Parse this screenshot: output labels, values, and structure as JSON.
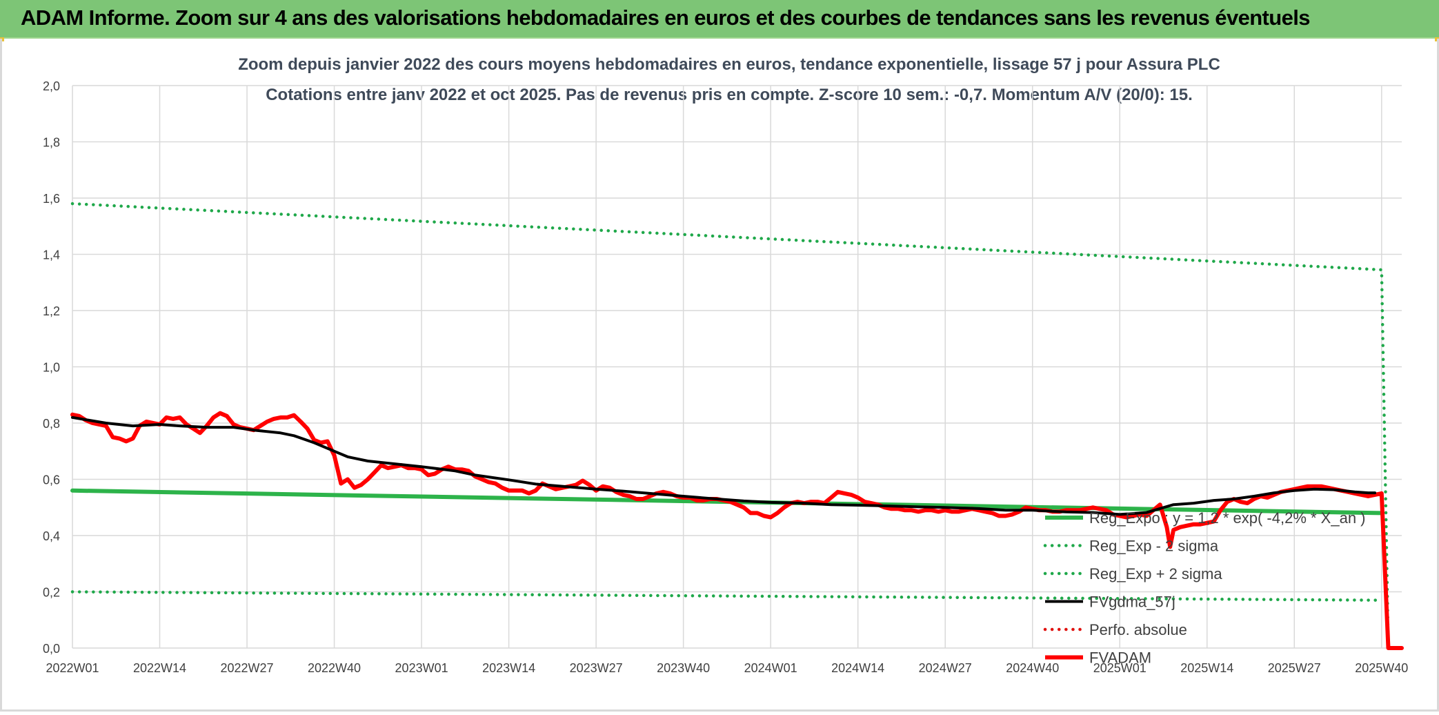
{
  "header": {
    "banner_title": "ADAM Informe. Zoom sur 4 ans des valorisations hebdomadaires en euros et des courbes de tendances sans les revenus éventuels"
  },
  "colors": {
    "banner_bg": "#7dc576",
    "reg_expo": "#2db34a",
    "sigma": "#1fa84a",
    "fvgdma": "#000000",
    "fvadam": "#ff0000",
    "perfo": "#e0120f",
    "grid": "#d9d9d9"
  },
  "chart_data": {
    "type": "line",
    "title": "Zoom depuis janvier 2022 des cours moyens hebdomadaires en euros, tendance exponentielle, lissage 57 j pour Assura PLC",
    "subtitle": "Cotations entre janv 2022 et oct 2025. Pas de revenus pris en compte. Z-score 10 sem.: -0,7. Momentum A/V (20/0): 15.",
    "xlabel": "",
    "ylabel": "",
    "x_ticks": [
      "2022W01",
      "2022W14",
      "2022W27",
      "2022W40",
      "2023W01",
      "2023W14",
      "2023W27",
      "2023W40",
      "2024W01",
      "2024W14",
      "2024W27",
      "2024W40",
      "2025W01",
      "2025W14",
      "2025W27",
      "2025W40"
    ],
    "y_ticks": [
      "2,0",
      "1,8",
      "1,6",
      "1,4",
      "1,2",
      "1,0",
      "0,8",
      "0,6",
      "0,4",
      "0,2",
      "0,0"
    ],
    "ylim": [
      0,
      2
    ],
    "x_range_weeks": [
      0,
      198
    ],
    "grid": true,
    "legend_position": "right",
    "series": [
      {
        "name": "Reg_Expo : y = 1,2 * exp( -4,2% * X_an )",
        "style": "solid-thick",
        "color": "#2db34a",
        "points": [
          [
            0,
            0.56
          ],
          [
            195,
            0.48
          ]
        ]
      },
      {
        "name": "Reg_Exp - 2 sigma",
        "style": "dotted",
        "color": "#1fa84a",
        "points": [
          [
            0,
            0.2
          ],
          [
            195,
            0.17
          ]
        ]
      },
      {
        "name": "Reg_Exp + 2 sigma",
        "style": "dotted",
        "color": "#1fa84a",
        "points": [
          [
            0,
            1.58
          ],
          [
            195,
            1.345
          ],
          [
            196,
            0.0
          ]
        ]
      },
      {
        "name": "FVgdma_57j",
        "style": "solid",
        "color": "#000000",
        "points": [
          [
            0,
            0.82
          ],
          [
            5,
            0.8
          ],
          [
            9,
            0.79
          ],
          [
            13,
            0.795
          ],
          [
            16,
            0.79
          ],
          [
            20,
            0.785
          ],
          [
            24,
            0.785
          ],
          [
            27,
            0.775
          ],
          [
            31,
            0.765
          ],
          [
            33,
            0.755
          ],
          [
            36,
            0.73
          ],
          [
            39,
            0.7
          ],
          [
            41,
            0.68
          ],
          [
            44,
            0.665
          ],
          [
            48,
            0.655
          ],
          [
            52,
            0.645
          ],
          [
            57,
            0.63
          ],
          [
            60,
            0.615
          ],
          [
            65,
            0.598
          ],
          [
            69,
            0.583
          ],
          [
            74,
            0.573
          ],
          [
            78,
            0.565
          ],
          [
            82,
            0.558
          ],
          [
            87,
            0.548
          ],
          [
            91,
            0.54
          ],
          [
            96,
            0.53
          ],
          [
            100,
            0.523
          ],
          [
            104,
            0.518
          ],
          [
            109,
            0.515
          ],
          [
            113,
            0.51
          ],
          [
            117,
            0.508
          ],
          [
            122,
            0.505
          ],
          [
            126,
            0.502
          ],
          [
            130,
            0.5
          ],
          [
            135,
            0.496
          ],
          [
            139,
            0.49
          ],
          [
            143,
            0.49
          ],
          [
            148,
            0.484
          ],
          [
            152,
            0.482
          ],
          [
            156,
            0.475
          ],
          [
            160,
            0.482
          ],
          [
            164,
            0.51
          ],
          [
            167,
            0.515
          ],
          [
            170,
            0.525
          ],
          [
            173,
            0.53
          ],
          [
            176,
            0.54
          ],
          [
            179,
            0.552
          ],
          [
            182,
            0.56
          ],
          [
            185,
            0.565
          ],
          [
            188,
            0.563
          ],
          [
            191,
            0.555
          ],
          [
            193,
            0.552
          ],
          [
            194,
            0.552
          ]
        ]
      },
      {
        "name": "Perfo. absolue",
        "style": "dotted",
        "color": "#e0120f",
        "points": []
      },
      {
        "name": "FVADAM",
        "style": "solid-thick",
        "color": "#ff0000",
        "points": [
          [
            0,
            0.83
          ],
          [
            1,
            0.825
          ],
          [
            2,
            0.81
          ],
          [
            3,
            0.8
          ],
          [
            5,
            0.79
          ],
          [
            6,
            0.75
          ],
          [
            7,
            0.745
          ],
          [
            8,
            0.735
          ],
          [
            9,
            0.745
          ],
          [
            10,
            0.79
          ],
          [
            11,
            0.805
          ],
          [
            12,
            0.8
          ],
          [
            13,
            0.795
          ],
          [
            14,
            0.82
          ],
          [
            15,
            0.815
          ],
          [
            16,
            0.82
          ],
          [
            17,
            0.795
          ],
          [
            18,
            0.78
          ],
          [
            19,
            0.765
          ],
          [
            20,
            0.79
          ],
          [
            21,
            0.82
          ],
          [
            22,
            0.835
          ],
          [
            23,
            0.825
          ],
          [
            24,
            0.795
          ],
          [
            25,
            0.785
          ],
          [
            26,
            0.78
          ],
          [
            27,
            0.775
          ],
          [
            28,
            0.79
          ],
          [
            29,
            0.805
          ],
          [
            30,
            0.815
          ],
          [
            31,
            0.82
          ],
          [
            32,
            0.82
          ],
          [
            33,
            0.828
          ],
          [
            34,
            0.805
          ],
          [
            35,
            0.78
          ],
          [
            36,
            0.74
          ],
          [
            37,
            0.73
          ],
          [
            38,
            0.735
          ],
          [
            39,
            0.685
          ],
          [
            40,
            0.585
          ],
          [
            41,
            0.6
          ],
          [
            42,
            0.57
          ],
          [
            43,
            0.58
          ],
          [
            44,
            0.6
          ],
          [
            45,
            0.625
          ],
          [
            46,
            0.65
          ],
          [
            47,
            0.64
          ],
          [
            48,
            0.645
          ],
          [
            49,
            0.65
          ],
          [
            50,
            0.64
          ],
          [
            51,
            0.64
          ],
          [
            52,
            0.635
          ],
          [
            53,
            0.615
          ],
          [
            54,
            0.62
          ],
          [
            55,
            0.635
          ],
          [
            56,
            0.645
          ],
          [
            57,
            0.635
          ],
          [
            58,
            0.635
          ],
          [
            59,
            0.63
          ],
          [
            60,
            0.61
          ],
          [
            61,
            0.6
          ],
          [
            62,
            0.59
          ],
          [
            63,
            0.585
          ],
          [
            64,
            0.57
          ],
          [
            65,
            0.56
          ],
          [
            66,
            0.56
          ],
          [
            67,
            0.56
          ],
          [
            68,
            0.55
          ],
          [
            69,
            0.56
          ],
          [
            70,
            0.585
          ],
          [
            71,
            0.575
          ],
          [
            72,
            0.565
          ],
          [
            73,
            0.57
          ],
          [
            74,
            0.575
          ],
          [
            75,
            0.58
          ],
          [
            76,
            0.595
          ],
          [
            77,
            0.58
          ],
          [
            78,
            0.56
          ],
          [
            79,
            0.575
          ],
          [
            80,
            0.57
          ],
          [
            81,
            0.555
          ],
          [
            82,
            0.545
          ],
          [
            83,
            0.54
          ],
          [
            84,
            0.53
          ],
          [
            85,
            0.53
          ],
          [
            86,
            0.54
          ],
          [
            87,
            0.55
          ],
          [
            88,
            0.555
          ],
          [
            89,
            0.55
          ],
          [
            90,
            0.54
          ],
          [
            91,
            0.535
          ],
          [
            92,
            0.535
          ],
          [
            93,
            0.525
          ],
          [
            94,
            0.525
          ],
          [
            95,
            0.53
          ],
          [
            96,
            0.53
          ],
          [
            97,
            0.525
          ],
          [
            98,
            0.52
          ],
          [
            99,
            0.51
          ],
          [
            100,
            0.5
          ],
          [
            101,
            0.48
          ],
          [
            102,
            0.48
          ],
          [
            103,
            0.47
          ],
          [
            104,
            0.465
          ],
          [
            105,
            0.48
          ],
          [
            106,
            0.5
          ],
          [
            107,
            0.515
          ],
          [
            108,
            0.52
          ],
          [
            109,
            0.515
          ],
          [
            110,
            0.52
          ],
          [
            111,
            0.52
          ],
          [
            112,
            0.515
          ],
          [
            113,
            0.535
          ],
          [
            114,
            0.555
          ],
          [
            115,
            0.55
          ],
          [
            116,
            0.545
          ],
          [
            117,
            0.535
          ],
          [
            118,
            0.52
          ],
          [
            119,
            0.515
          ],
          [
            120,
            0.51
          ],
          [
            121,
            0.5
          ],
          [
            122,
            0.495
          ],
          [
            123,
            0.495
          ],
          [
            124,
            0.49
          ],
          [
            125,
            0.49
          ],
          [
            126,
            0.485
          ],
          [
            127,
            0.49
          ],
          [
            128,
            0.49
          ],
          [
            129,
            0.485
          ],
          [
            130,
            0.49
          ],
          [
            131,
            0.485
          ],
          [
            132,
            0.485
          ],
          [
            133,
            0.49
          ],
          [
            134,
            0.495
          ],
          [
            135,
            0.49
          ],
          [
            136,
            0.485
          ],
          [
            137,
            0.48
          ],
          [
            138,
            0.47
          ],
          [
            139,
            0.47
          ],
          [
            140,
            0.475
          ],
          [
            141,
            0.485
          ],
          [
            142,
            0.5
          ],
          [
            143,
            0.495
          ],
          [
            144,
            0.49
          ],
          [
            145,
            0.49
          ],
          [
            146,
            0.485
          ],
          [
            147,
            0.485
          ],
          [
            148,
            0.49
          ],
          [
            149,
            0.49
          ],
          [
            150,
            0.49
          ],
          [
            151,
            0.495
          ],
          [
            152,
            0.5
          ],
          [
            153,
            0.495
          ],
          [
            154,
            0.49
          ],
          [
            155,
            0.475
          ],
          [
            156,
            0.47
          ],
          [
            157,
            0.465
          ],
          [
            158,
            0.47
          ],
          [
            159,
            0.475
          ],
          [
            160,
            0.47
          ],
          [
            161,
            0.49
          ],
          [
            162,
            0.51
          ],
          [
            163,
            0.43
          ],
          [
            163.5,
            0.36
          ],
          [
            164,
            0.42
          ],
          [
            165,
            0.43
          ],
          [
            166,
            0.435
          ],
          [
            167,
            0.44
          ],
          [
            168,
            0.44
          ],
          [
            169,
            0.445
          ],
          [
            170,
            0.45
          ],
          [
            171,
            0.49
          ],
          [
            172,
            0.52
          ],
          [
            173,
            0.53
          ],
          [
            174,
            0.52
          ],
          [
            175,
            0.515
          ],
          [
            176,
            0.53
          ],
          [
            177,
            0.54
          ],
          [
            178,
            0.535
          ],
          [
            179,
            0.545
          ],
          [
            180,
            0.555
          ],
          [
            181,
            0.56
          ],
          [
            182,
            0.565
          ],
          [
            183,
            0.57
          ],
          [
            184,
            0.575
          ],
          [
            185,
            0.575
          ],
          [
            186,
            0.575
          ],
          [
            187,
            0.57
          ],
          [
            188,
            0.565
          ],
          [
            189,
            0.56
          ],
          [
            190,
            0.555
          ],
          [
            191,
            0.55
          ],
          [
            192,
            0.545
          ],
          [
            193,
            0.54
          ],
          [
            194,
            0.545
          ],
          [
            195,
            0.55
          ],
          [
            196,
            0.0
          ],
          [
            198,
            0.0
          ]
        ]
      }
    ]
  }
}
